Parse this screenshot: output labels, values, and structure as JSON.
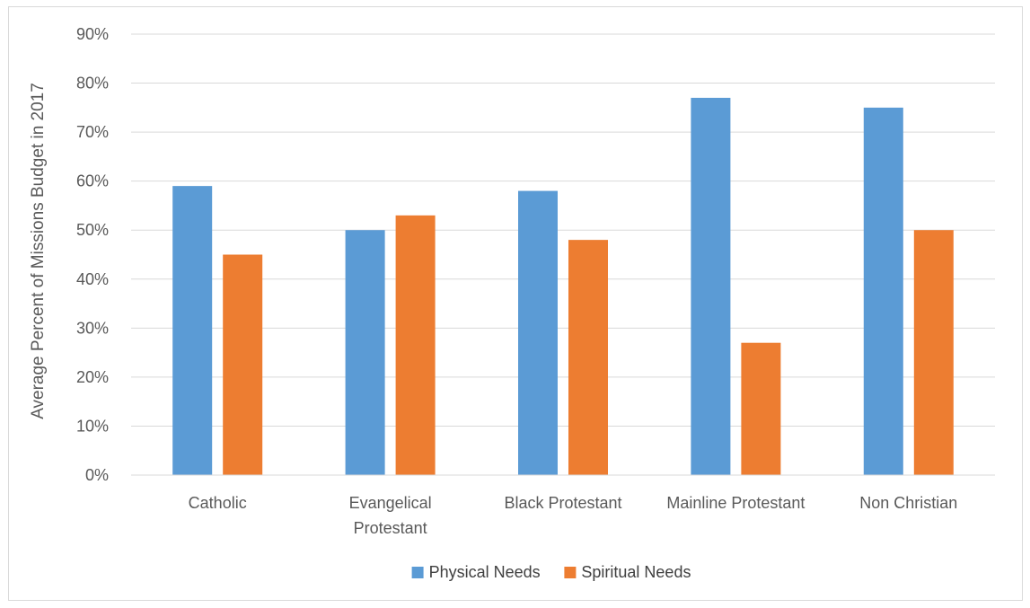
{
  "chart_data": {
    "type": "bar",
    "title": "",
    "xlabel": "",
    "ylabel": "Average Percent of Missions Budget in 2017",
    "categories": [
      [
        "Catholic"
      ],
      [
        "Evangelical",
        "Protestant"
      ],
      [
        "Black  Protestant"
      ],
      [
        "Mainline Protestant"
      ],
      [
        "Non Christian"
      ]
    ],
    "series": [
      {
        "name": "Physical Needs",
        "color": "#5b9bd5",
        "values": [
          59,
          50,
          58,
          77,
          75
        ]
      },
      {
        "name": "Spiritual Needs",
        "color": "#ed7d31",
        "values": [
          45,
          53,
          48,
          27,
          50
        ]
      }
    ],
    "ylim": [
      0,
      90
    ],
    "yticks": [
      0,
      10,
      20,
      30,
      40,
      50,
      60,
      70,
      80,
      90
    ],
    "ytick_format": "{v}%",
    "grid": true,
    "legend": "bottom"
  }
}
